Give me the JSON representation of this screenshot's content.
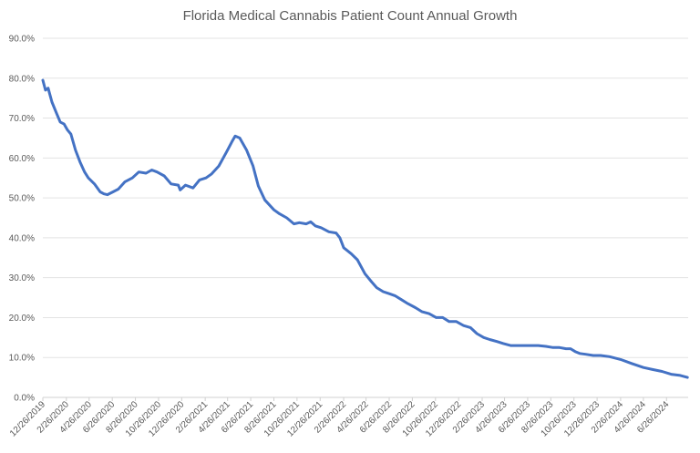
{
  "chart_data": {
    "type": "line",
    "title": "Florida Medical Cannabis Patient Count Annual Growth",
    "xlabel": "",
    "ylabel": "",
    "ylim": [
      0,
      90
    ],
    "xlim": [
      "2019-12-26",
      "2024-08-22"
    ],
    "grid": true,
    "legend": "none",
    "line_color": "#4472C4",
    "y_ticks": [
      "0.0%",
      "10.0%",
      "20.0%",
      "30.0%",
      "40.0%",
      "50.0%",
      "60.0%",
      "70.0%",
      "80.0%",
      "90.0%"
    ],
    "x_ticks": [
      "12/26/2019",
      "2/26/2020",
      "4/26/2020",
      "6/26/2020",
      "8/26/2020",
      "10/26/2020",
      "12/26/2020",
      "2/26/2021",
      "4/26/2021",
      "6/26/2021",
      "8/26/2021",
      "10/26/2021",
      "12/26/2021",
      "2/26/2022",
      "4/26/2022",
      "6/26/2022",
      "8/26/2022",
      "10/26/2022",
      "12/26/2022",
      "2/26/2023",
      "4/26/2023",
      "6/26/2023",
      "8/26/2023",
      "10/26/2023",
      "12/26/2023",
      "2/26/2024",
      "4/26/2024",
      "6/26/2024"
    ],
    "x": [
      "2019-12-26",
      "2020-01-02",
      "2020-01-09",
      "2020-01-19",
      "2020-02-01",
      "2020-02-10",
      "2020-02-20",
      "2020-02-29",
      "2020-03-09",
      "2020-03-21",
      "2020-04-02",
      "2020-04-14",
      "2020-04-24",
      "2020-05-10",
      "2020-05-25",
      "2020-06-04",
      "2020-06-13",
      "2020-06-28",
      "2020-07-12",
      "2020-07-29",
      "2020-08-18",
      "2020-09-04",
      "2020-09-23",
      "2020-10-08",
      "2020-10-22",
      "2020-11-10",
      "2020-11-28",
      "2020-12-17",
      "2020-12-22",
      "2021-01-05",
      "2021-01-25",
      "2021-02-11",
      "2021-02-28",
      "2021-03-15",
      "2021-04-03",
      "2021-04-23",
      "2021-05-07",
      "2021-05-16",
      "2021-05-28",
      "2021-06-15",
      "2021-07-02",
      "2021-07-16",
      "2021-08-02",
      "2021-08-26",
      "2021-09-10",
      "2021-09-29",
      "2021-10-18",
      "2021-11-01",
      "2021-11-19",
      "2021-12-01",
      "2021-12-13",
      "2021-12-29",
      "2022-01-18",
      "2022-02-06",
      "2022-02-16",
      "2022-02-26",
      "2022-03-18",
      "2022-04-03",
      "2022-04-23",
      "2022-05-10",
      "2022-05-24",
      "2022-06-10",
      "2022-06-26",
      "2022-07-11",
      "2022-07-28",
      "2022-08-14",
      "2022-09-03",
      "2022-09-20",
      "2022-10-09",
      "2022-10-28",
      "2022-11-14",
      "2022-12-01",
      "2022-12-20",
      "2023-01-08",
      "2023-01-26",
      "2023-02-12",
      "2023-03-02",
      "2023-03-18",
      "2023-04-06",
      "2023-04-23",
      "2023-05-12",
      "2023-05-29",
      "2023-06-18",
      "2023-07-07",
      "2023-07-24",
      "2023-08-13",
      "2023-09-01",
      "2023-09-18",
      "2023-10-05",
      "2023-10-17",
      "2023-10-29",
      "2023-11-10",
      "2023-11-26",
      "2023-12-16",
      "2024-01-04",
      "2024-01-28",
      "2024-02-26",
      "2024-03-26",
      "2024-04-26",
      "2024-05-20",
      "2024-06-14",
      "2024-07-08",
      "2024-08-01",
      "2024-08-20"
    ],
    "series": [
      {
        "values": [
          79.5,
          77,
          77.5,
          74,
          71,
          69,
          68.5,
          67,
          66,
          62,
          59,
          56.5,
          55,
          53.5,
          51.5,
          51,
          50.8,
          51.5,
          52.2,
          54,
          55,
          56.5,
          56.2,
          57,
          56.5,
          55.5,
          53.5,
          53.2,
          52,
          53.2,
          52.5,
          54.5,
          55,
          56,
          58,
          61.5,
          64,
          65.5,
          65,
          62,
          58,
          53,
          49.5,
          47,
          46,
          45,
          43.5,
          43.8,
          43.5,
          44,
          43,
          42.5,
          41.5,
          41.2,
          40,
          37.5,
          36,
          34.5,
          31,
          29,
          27.5,
          26.5,
          26,
          25.5,
          24.5,
          23.5,
          22.5,
          21.5,
          21,
          20,
          20,
          19,
          19,
          18,
          17.5,
          16,
          15,
          14.5,
          14,
          13.5,
          13,
          13,
          13,
          13,
          13,
          12.8,
          12.5,
          12.5,
          12.2,
          12.2,
          11.5,
          11,
          10.8,
          10.5,
          10.5,
          10.2,
          9.5,
          8.5,
          7.5,
          7,
          6.5,
          5.8,
          5.5,
          5
        ]
      }
    ]
  }
}
